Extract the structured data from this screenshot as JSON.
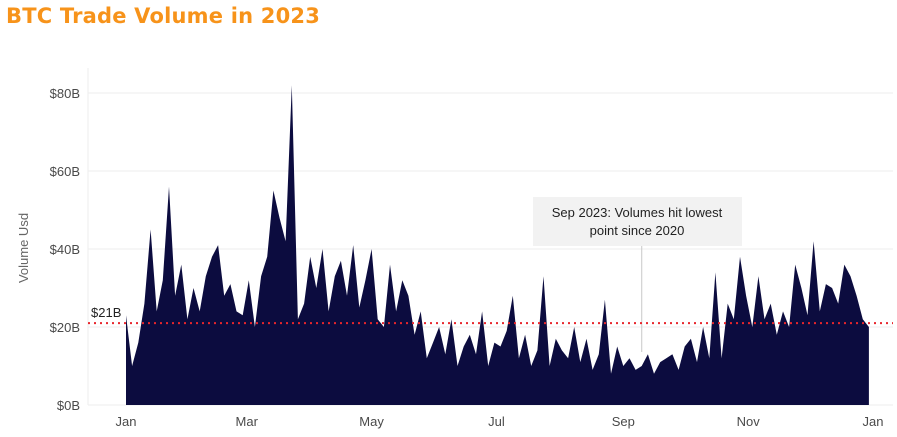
{
  "title": "BTC Trade Volume in 2023",
  "chart_data": {
    "type": "area",
    "title": "BTC Trade Volume in 2023",
    "xlabel": "",
    "ylabel": "Volume Usd",
    "unit": "USD billions",
    "x_range": [
      "2023-01-01",
      "2024-01-01"
    ],
    "ylim": [
      0,
      85
    ],
    "y_ticks": [
      {
        "value": 0,
        "label": "$0B"
      },
      {
        "value": 20,
        "label": "$20B"
      },
      {
        "value": 40,
        "label": "$40B"
      },
      {
        "value": 60,
        "label": "$60B"
      },
      {
        "value": 80,
        "label": "$80B"
      }
    ],
    "x_ticks": [
      {
        "date": "2023-01-01",
        "label": "Jan"
      },
      {
        "date": "2023-03-01",
        "label": "Mar"
      },
      {
        "date": "2023-05-01",
        "label": "May"
      },
      {
        "date": "2023-07-01",
        "label": "Jul"
      },
      {
        "date": "2023-09-01",
        "label": "Sep"
      },
      {
        "date": "2023-11-01",
        "label": "Nov"
      },
      {
        "date": "2024-01-01",
        "label": "Jan"
      }
    ],
    "grid": "horizontal",
    "reference_line": {
      "value": 21,
      "label": "$21B",
      "color": "#e8262c",
      "style": "dotted"
    },
    "annotation": {
      "date": "2023-09-10",
      "lines": [
        "Sep 2023: Volumes hit lowest",
        "point since 2020"
      ]
    },
    "fill_color": "#0c0c3f",
    "series": [
      {
        "x": [
          "2023-01-01",
          "2023-01-04",
          "2023-01-07",
          "2023-01-10",
          "2023-01-13",
          "2023-01-16",
          "2023-01-19",
          "2023-01-22",
          "2023-01-25",
          "2023-01-28",
          "2023-01-31",
          "2023-02-03",
          "2023-02-06",
          "2023-02-09",
          "2023-02-12",
          "2023-02-15",
          "2023-02-18",
          "2023-02-21",
          "2023-02-24",
          "2023-02-27",
          "2023-03-02",
          "2023-03-05",
          "2023-03-08",
          "2023-03-11",
          "2023-03-14",
          "2023-03-17",
          "2023-03-20",
          "2023-03-23",
          "2023-03-26",
          "2023-03-29",
          "2023-04-01",
          "2023-04-04",
          "2023-04-07",
          "2023-04-10",
          "2023-04-13",
          "2023-04-16",
          "2023-04-19",
          "2023-04-22",
          "2023-04-25",
          "2023-04-28",
          "2023-05-01",
          "2023-05-04",
          "2023-05-07",
          "2023-05-10",
          "2023-05-13",
          "2023-05-16",
          "2023-05-19",
          "2023-05-22",
          "2023-05-25",
          "2023-05-28",
          "2023-05-31",
          "2023-06-03",
          "2023-06-06",
          "2023-06-09",
          "2023-06-12",
          "2023-06-15",
          "2023-06-18",
          "2023-06-21",
          "2023-06-24",
          "2023-06-27",
          "2023-06-30",
          "2023-07-03",
          "2023-07-06",
          "2023-07-09",
          "2023-07-12",
          "2023-07-15",
          "2023-07-18",
          "2023-07-21",
          "2023-07-24",
          "2023-07-27",
          "2023-07-30",
          "2023-08-02",
          "2023-08-05",
          "2023-08-08",
          "2023-08-11",
          "2023-08-14",
          "2023-08-17",
          "2023-08-20",
          "2023-08-23",
          "2023-08-26",
          "2023-08-29",
          "2023-09-01",
          "2023-09-04",
          "2023-09-07",
          "2023-09-10",
          "2023-09-13",
          "2023-09-16",
          "2023-09-19",
          "2023-09-22",
          "2023-09-25",
          "2023-09-28",
          "2023-10-01",
          "2023-10-04",
          "2023-10-07",
          "2023-10-10",
          "2023-10-13",
          "2023-10-16",
          "2023-10-19",
          "2023-10-22",
          "2023-10-25",
          "2023-10-28",
          "2023-10-31",
          "2023-11-03",
          "2023-11-06",
          "2023-11-09",
          "2023-11-12",
          "2023-11-15",
          "2023-11-18",
          "2023-11-21",
          "2023-11-24",
          "2023-11-27",
          "2023-11-30",
          "2023-12-03",
          "2023-12-06",
          "2023-12-09",
          "2023-12-12",
          "2023-12-15",
          "2023-12-18",
          "2023-12-21",
          "2023-12-24",
          "2023-12-27",
          "2023-12-30"
        ],
        "y": [
          23,
          10,
          16,
          26,
          45,
          24,
          32,
          56,
          28,
          36,
          22,
          30,
          24,
          33,
          38,
          41,
          28,
          31,
          24,
          23,
          32,
          20,
          33,
          38,
          55,
          48,
          42,
          82,
          22,
          26,
          38,
          30,
          40,
          24,
          33,
          37,
          28,
          41,
          25,
          32,
          40,
          22,
          20,
          36,
          24,
          32,
          28,
          18,
          24,
          12,
          16,
          20,
          13,
          22,
          10,
          15,
          18,
          13,
          24,
          10,
          16,
          15,
          19,
          28,
          12,
          18,
          10,
          14,
          33,
          10,
          17,
          14,
          12,
          20,
          11,
          17,
          9,
          13,
          27,
          8,
          15,
          10,
          12,
          9,
          10,
          13,
          8,
          11,
          12,
          13,
          9,
          15,
          17,
          11,
          20,
          12,
          34,
          12,
          26,
          22,
          38,
          28,
          20,
          33,
          22,
          26,
          18,
          24,
          20,
          36,
          30,
          23,
          42,
          24,
          31,
          30,
          26,
          36,
          33,
          28,
          22,
          20
        ]
      }
    ]
  }
}
